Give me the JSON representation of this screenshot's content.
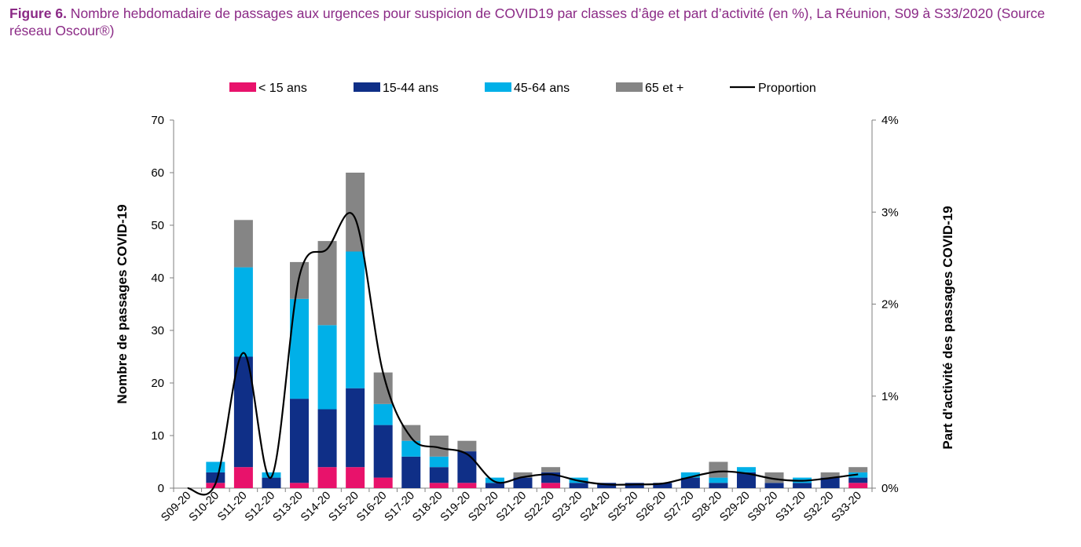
{
  "figure": {
    "label": "Figure 6.",
    "caption": " Nombre hebdomadaire de passages aux urgences pour suspicion de COVID19 par classes d’âge et part d’activité (en %), La Réunion, S09 à S33/2020 (Source réseau Oscour®)"
  },
  "chart_data": {
    "type": "bar",
    "stacked": true,
    "categories": [
      "S09-20",
      "S10-20",
      "S11-20",
      "S12-20",
      "S13-20",
      "S14-20",
      "S15-20",
      "S16-20",
      "S17-20",
      "S18-20",
      "S19-20",
      "S20-20",
      "S21-20",
      "S22-20",
      "S23-20",
      "S24-20",
      "S25-20",
      "S26-20",
      "S27-20",
      "S28-20",
      "S29-20",
      "S30-20",
      "S31-20",
      "S32-20",
      "S33-20"
    ],
    "series": [
      {
        "name": "< 15 ans",
        "color": "#e8126b",
        "values": [
          0,
          1,
          4,
          0,
          1,
          4,
          4,
          2,
          0,
          1,
          1,
          0,
          0,
          1,
          0,
          0,
          0,
          0,
          0,
          0,
          0,
          0,
          0,
          0,
          1
        ]
      },
      {
        "name": "15-44 ans",
        "color": "#0f2f87",
        "values": [
          0,
          2,
          21,
          2,
          16,
          11,
          15,
          10,
          6,
          3,
          6,
          1,
          2,
          2,
          1,
          1,
          1,
          1,
          2,
          1,
          3,
          1,
          1,
          2,
          1
        ]
      },
      {
        "name": "45-64 ans",
        "color": "#00b0e8",
        "values": [
          0,
          2,
          17,
          1,
          19,
          16,
          26,
          4,
          3,
          2,
          0,
          1,
          0,
          0,
          1,
          0,
          0,
          0,
          1,
          1,
          1,
          0,
          1,
          0,
          1
        ]
      },
      {
        "name": "65 et +",
        "color": "#858585",
        "values": [
          0,
          0,
          9,
          0,
          7,
          16,
          15,
          6,
          3,
          4,
          2,
          0,
          1,
          1,
          0,
          0,
          0,
          0,
          0,
          3,
          0,
          2,
          0,
          1,
          1
        ]
      }
    ],
    "line": {
      "name": "Proportion",
      "color": "#000000",
      "axis": "right",
      "values": [
        0.0,
        0.05,
        1.47,
        0.12,
        2.3,
        2.6,
        2.93,
        1.25,
        0.55,
        0.44,
        0.37,
        0.07,
        0.12,
        0.15,
        0.08,
        0.04,
        0.04,
        0.05,
        0.12,
        0.18,
        0.16,
        0.1,
        0.08,
        0.11,
        0.15
      ]
    },
    "ylabel_left": "Nombre de passages COVID-19",
    "ylabel_right": "Part d'activité des passages COVID-19",
    "ylim_left": [
      0,
      70
    ],
    "yticks_left": [
      "0",
      "10",
      "20",
      "30",
      "40",
      "50",
      "60",
      "70"
    ],
    "ylim_right": [
      0,
      4
    ],
    "yticks_right": [
      "0%",
      "1%",
      "2%",
      "3%",
      "4%"
    ],
    "grid": false,
    "legend_position": "top"
  }
}
